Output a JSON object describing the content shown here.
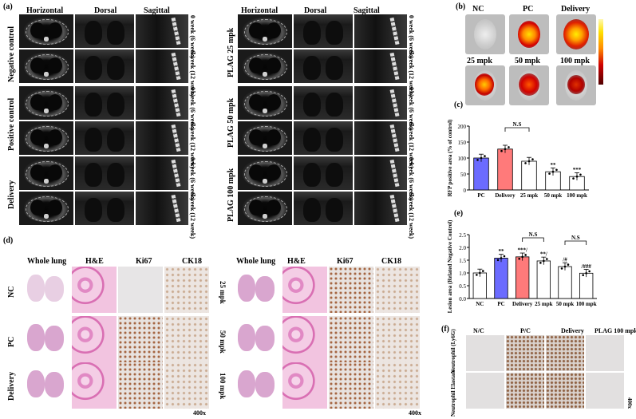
{
  "panels": {
    "a": "(a)",
    "b": "(b)",
    "c": "(c)",
    "d": "(d)",
    "e": "(e)",
    "f": "(f)"
  },
  "ct": {
    "col_headers": [
      "Horizontal",
      "Dorsal",
      "Sagittal"
    ],
    "left_groups": [
      "Negative control",
      "Positive control",
      "Delivery"
    ],
    "right_groups": [
      "PLAG 25 mpk",
      "PLAG 50 mpk",
      "PLAG 100 mpk"
    ],
    "row_labels": [
      "0 week (6 week)",
      "6 week (12 week)"
    ]
  },
  "ivis": {
    "top_labels": [
      "NC",
      "PC",
      "Delivery"
    ],
    "bottom_labels": [
      "25 mpk",
      "50 mpk",
      "100 mpk"
    ]
  },
  "histo": {
    "col_headers": [
      "Whole lung",
      "H&E",
      "Ki67",
      "CK18"
    ],
    "left_rows": [
      "NC",
      "PC",
      "Delivery"
    ],
    "right_rows": [
      "25 mpk",
      "50 mpk",
      "100 mpk"
    ],
    "mag_left": "400x",
    "mag_right": "400x"
  },
  "ihc": {
    "col_headers": [
      "N/C",
      "P/C",
      "Delivery",
      "PLAG 100 mpk"
    ],
    "row_labels": [
      "Neutrophil (Ly6G)",
      "Neutrophil Elastase"
    ],
    "mag": "400x"
  },
  "chart_data": [
    {
      "type": "bar",
      "categories": [
        "PC",
        "Delivery",
        "25 mpk",
        "50 mpk",
        "100 mpk"
      ],
      "values": [
        100,
        128,
        90,
        57,
        42
      ],
      "colors": [
        "#6b6bff",
        "#ff7a7a",
        "#ffffff",
        "#ffffff",
        "#ffffff"
      ],
      "ylabel": "RFP positive area (% of control)",
      "ylim": [
        0,
        200
      ],
      "yticks": [
        "0",
        "50",
        "100",
        "150",
        "200"
      ],
      "annotations": [
        "**",
        "***"
      ],
      "bracket": "N.S"
    },
    {
      "type": "bar",
      "categories": [
        "NC",
        "PC",
        "Delivery",
        "25 mpk",
        "50 mpk",
        "100 mpk"
      ],
      "values": [
        1.0,
        1.58,
        1.63,
        1.47,
        1.25,
        0.99
      ],
      "colors": [
        "#ffffff",
        "#6b6bff",
        "#ff7a7a",
        "#ffffff",
        "#ffffff",
        "#ffffff"
      ],
      "ylabel": "Lesion area (Related Negative Control)",
      "ylim": [
        0,
        2.5
      ],
      "yticks": [
        "0.0",
        "0.5",
        "1.0",
        "1.5",
        "2.0",
        "2.5"
      ],
      "annotations": [
        "**",
        "***/",
        "**/",
        "/#",
        "/###"
      ],
      "brackets": [
        "N.S",
        "N.S"
      ]
    }
  ]
}
